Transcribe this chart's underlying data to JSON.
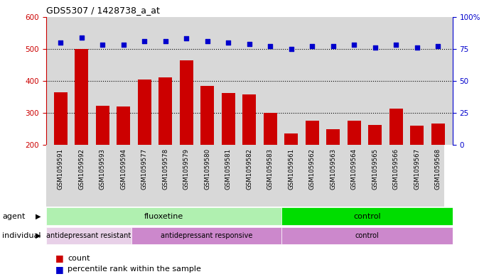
{
  "title": "GDS5307 / 1428738_a_at",
  "samples": [
    "GSM1059591",
    "GSM1059592",
    "GSM1059593",
    "GSM1059594",
    "GSM1059577",
    "GSM1059578",
    "GSM1059579",
    "GSM1059580",
    "GSM1059581",
    "GSM1059582",
    "GSM1059583",
    "GSM1059561",
    "GSM1059562",
    "GSM1059563",
    "GSM1059564",
    "GSM1059565",
    "GSM1059566",
    "GSM1059567",
    "GSM1059568"
  ],
  "counts": [
    365,
    500,
    323,
    320,
    405,
    410,
    463,
    385,
    362,
    358,
    300,
    237,
    275,
    250,
    275,
    262,
    314,
    260,
    267
  ],
  "percentiles": [
    80,
    84,
    78,
    78,
    81,
    81,
    83,
    81,
    80,
    79,
    77,
    75,
    77,
    77,
    78,
    76,
    78,
    76,
    77
  ],
  "ylim_left": [
    200,
    600
  ],
  "ylim_right": [
    0,
    100
  ],
  "yticks_left": [
    200,
    300,
    400,
    500,
    600
  ],
  "yticks_right": [
    0,
    25,
    50,
    75,
    100
  ],
  "bar_color": "#cc0000",
  "dot_color": "#0000cc",
  "plot_bg_color": "#d8d8d8",
  "agent_fluoxetine_color": "#b0f0b0",
  "agent_control_color": "#00dd00",
  "ind_resistant_color": "#e8d0e8",
  "ind_responsive_color": "#cc88cc",
  "ind_control_color": "#cc88cc",
  "agent_groups": [
    {
      "label": "fluoxetine",
      "start": 0,
      "end": 11,
      "color": "#b0f0b0"
    },
    {
      "label": "control",
      "start": 11,
      "end": 19,
      "color": "#00dd00"
    }
  ],
  "individual_groups": [
    {
      "label": "antidepressant resistant",
      "start": 0,
      "end": 4,
      "color": "#e8d0e8"
    },
    {
      "label": "antidepressant responsive",
      "start": 4,
      "end": 11,
      "color": "#cc88cc"
    },
    {
      "label": "control",
      "start": 11,
      "end": 19,
      "color": "#cc88cc"
    }
  ],
  "grid_lines": [
    300,
    400,
    500
  ],
  "title_fontsize": 9
}
